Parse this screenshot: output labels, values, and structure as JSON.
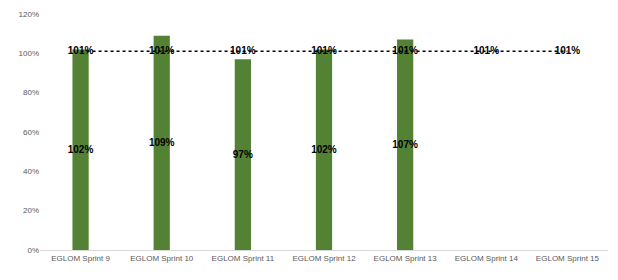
{
  "chart_data": {
    "type": "bar",
    "categories": [
      "EGLOM Sprint 9",
      "EGLOM Sprint 10",
      "EGLOM Sprint 11",
      "EGLOM Sprint 12",
      "EGLOM Sprint 13",
      "EGLOM Sprint 14",
      "EGLOM Sprint 15"
    ],
    "series": [
      {
        "type": "bar",
        "color": "#548235",
        "values": [
          102,
          109,
          97,
          102,
          107,
          null,
          null
        ],
        "value_labels": [
          "102%",
          "109%",
          "97%",
          "102%",
          "107%",
          null,
          null
        ]
      },
      {
        "type": "line",
        "color": "#000000",
        "line_style": "dotted",
        "values": [
          101,
          101,
          101,
          101,
          101,
          101,
          101
        ],
        "value_labels": [
          "101%",
          "101%",
          "101%",
          "101%",
          "101%",
          "101%",
          "101%"
        ]
      }
    ],
    "ylim": [
      0,
      120
    ],
    "yticks": [
      {
        "value": 0,
        "label": "0%"
      },
      {
        "value": 20,
        "label": "20%"
      },
      {
        "value": 40,
        "label": "40%"
      },
      {
        "value": 60,
        "label": "60%"
      },
      {
        "value": 80,
        "label": "80%"
      },
      {
        "value": 100,
        "label": "100%"
      },
      {
        "value": 120,
        "label": "120%"
      }
    ],
    "grid": false,
    "data_labels": true
  }
}
